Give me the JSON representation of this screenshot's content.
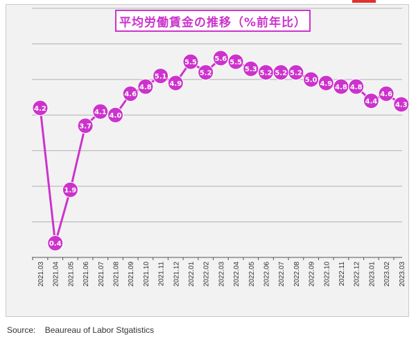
{
  "chart_data": {
    "type": "line",
    "title": "平均労働賃金の推移（%前年比）",
    "categories": [
      "2021.03",
      "2021.04",
      "2021.05",
      "2021.06",
      "2021.07",
      "2021.08",
      "2021.09",
      "2021.10",
      "2021.11",
      "2021.12",
      "2022.01",
      "2022.02",
      "2022.03",
      "2022.04",
      "2022.05",
      "2022.06",
      "2022.07",
      "2022.08",
      "2022.09",
      "2022.10",
      "2022.11",
      "2022.12",
      "2023.01",
      "2023.02",
      "2023.03"
    ],
    "values": [
      4.2,
      0.4,
      1.9,
      3.7,
      4.1,
      4.0,
      4.6,
      4.8,
      5.1,
      4.9,
      5.5,
      5.2,
      5.6,
      5.5,
      5.3,
      5.2,
      5.2,
      5.2,
      5.0,
      4.9,
      4.8,
      4.8,
      4.4,
      4.6,
      4.3
    ],
    "data_labels": [
      "4.2",
      "0.4",
      "1.9",
      "3.7",
      "4.1",
      "4.0",
      "4.6",
      "4.8",
      "5.1",
      "4.9",
      "5.5",
      "5.2",
      "5.6",
      "5.5",
      "5.3",
      "5.2",
      "5.2",
      "5.2",
      "5.0",
      "4.9",
      "4.8",
      "4.8",
      "4.4",
      "4.6",
      "4.3"
    ],
    "ylim": [
      0,
      7
    ],
    "y_grid_step": 1,
    "grid": true,
    "y_tick_labels_shown": false,
    "line_color": "#cc33cc",
    "marker_color": "#cc33cc",
    "label_color": "#ffffff"
  },
  "footer": {
    "source": "Source:    Beaureau of Labor Stgatistics"
  },
  "colors": {
    "accent": "#cc33cc",
    "corner_mark": "#e03030",
    "plot_background": "#f2f2f2",
    "gridline": "#b0b0b0"
  }
}
